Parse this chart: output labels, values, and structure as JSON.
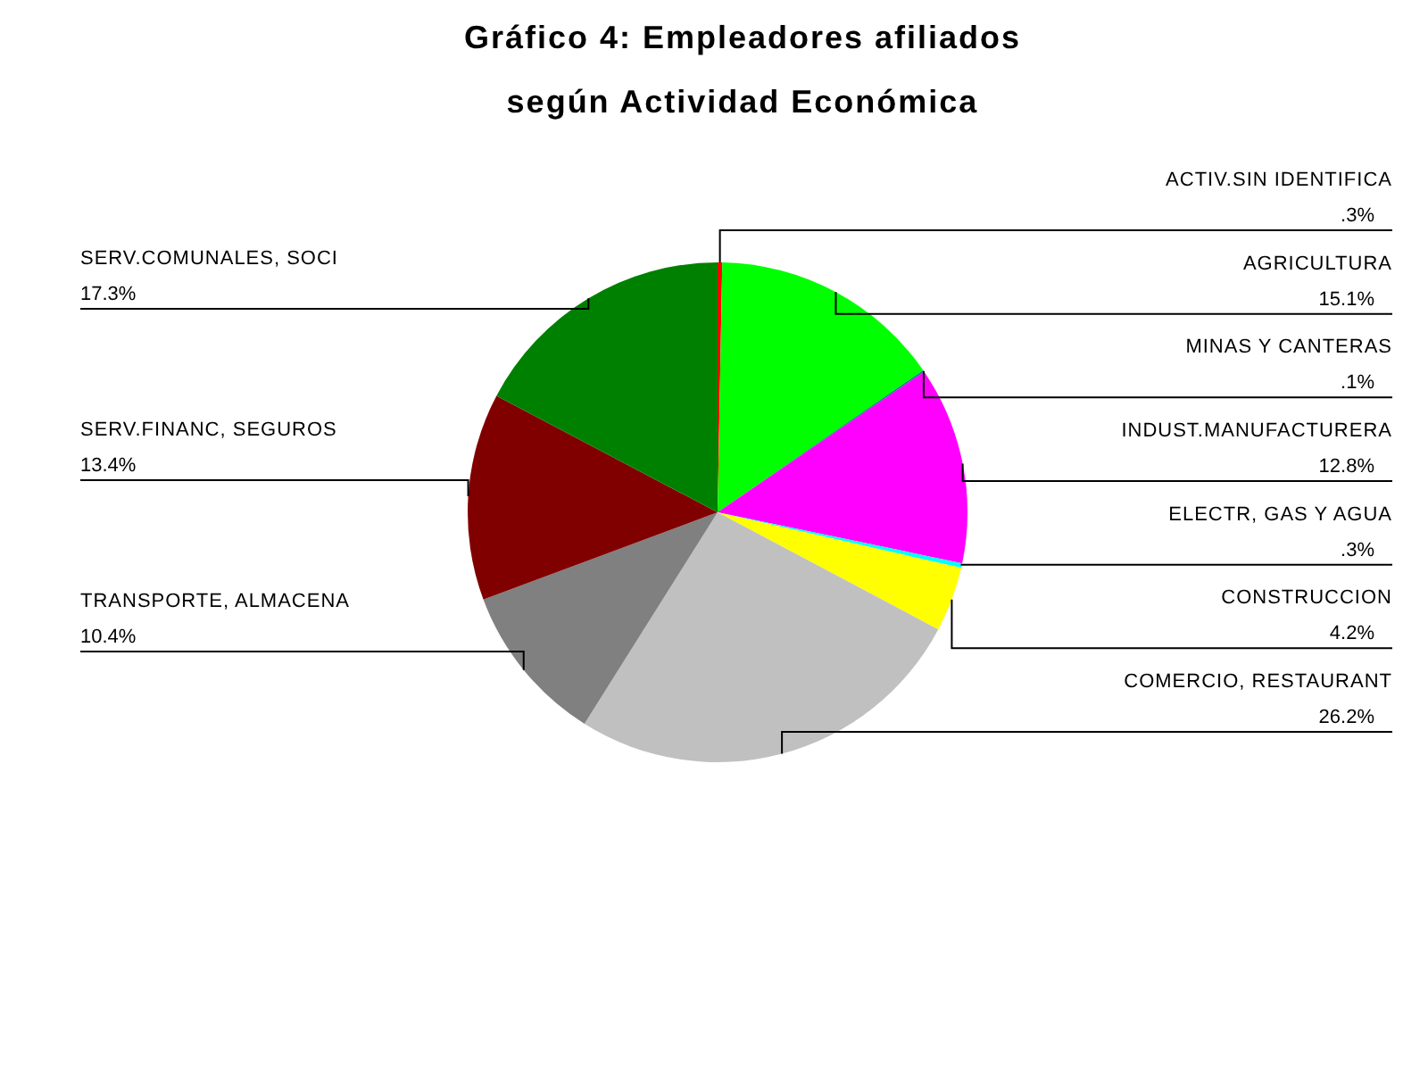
{
  "chart_data": {
    "type": "pie",
    "title": "Gráfico 4: Empleadores afiliados\nsegún Actividad Económica",
    "categories": [
      "ACTIV.SIN IDENTIFICA",
      "AGRICULTURA",
      "MINAS Y CANTERAS",
      "INDUST.MANUFACTURERA",
      "ELECTR, GAS Y AGUA",
      "CONSTRUCCION",
      "COMERCIO, RESTAURANT",
      "TRANSPORTE, ALMACENA",
      "SERV.FINANC, SEGUROS",
      "SERV.COMUNALES, SOCI"
    ],
    "values": [
      0.3,
      15.1,
      0.1,
      12.8,
      0.3,
      4.2,
      26.2,
      10.4,
      13.4,
      17.3
    ],
    "value_labels": [
      ".3%",
      "15.1%",
      ".1%",
      "12.8%",
      ".3%",
      "4.2%",
      "26.2%",
      "10.4%",
      "13.4%",
      "17.3%"
    ],
    "colors": [
      "#ff0000",
      "#00ff00",
      "#008080",
      "#ff00ff",
      "#00ffff",
      "#ffff00",
      "#c0c0c0",
      "#808080",
      "#800000",
      "#008000"
    ]
  }
}
